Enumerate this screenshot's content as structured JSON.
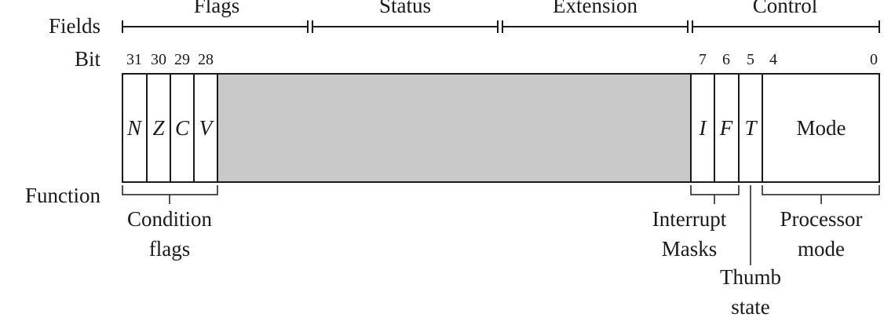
{
  "diagram": {
    "row_labels": {
      "fields": "Fields",
      "bit": "Bit",
      "function": "Function"
    },
    "fields": [
      {
        "label": "Flags"
      },
      {
        "label": "Status"
      },
      {
        "label": "Extension"
      },
      {
        "label": "Control"
      }
    ],
    "bit_numbers": [
      "31",
      "30",
      "29",
      "28",
      "7",
      "6",
      "5",
      "4",
      "0"
    ],
    "bits": {
      "n": "N",
      "z": "Z",
      "c": "C",
      "v": "V",
      "i": "I",
      "f": "F",
      "t": "T",
      "mode": "Mode"
    },
    "functions": {
      "condition": [
        "Condition",
        "flags"
      ],
      "interrupt": [
        "Interrupt",
        "Masks"
      ],
      "thumb": [
        "Thumb",
        "state"
      ],
      "processor": [
        "Processor",
        "mode"
      ]
    },
    "colors": {
      "reserved_fill": "#c8c8c8",
      "line": "#1a1a1a"
    }
  }
}
